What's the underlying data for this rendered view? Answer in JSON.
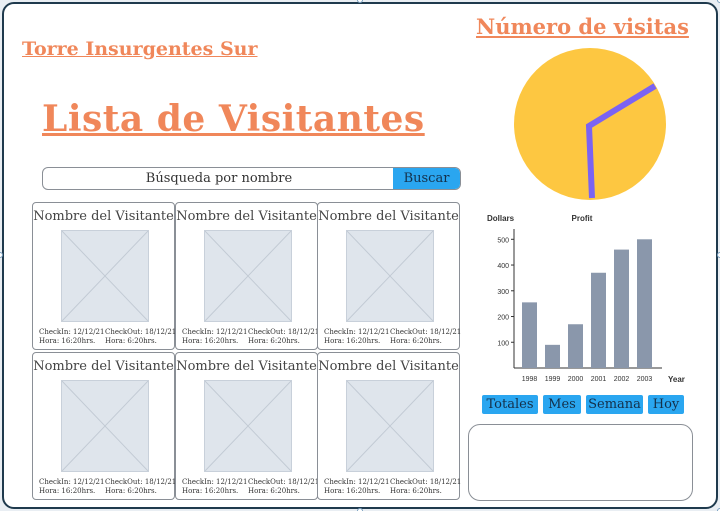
{
  "header": {
    "site_title": "Torre Insurgentes Sur",
    "list_title": "Lista de  Visitantes",
    "visits_title": "Número de visitas"
  },
  "search": {
    "placeholder": "Búsqueda por nombre",
    "button_label": "Buscar"
  },
  "visitors": [
    {
      "name": "Nombre del Visitante",
      "checkin": "CheckIn: 12/12/21",
      "checkin_time": "Hora: 16:20hrs.",
      "checkout": "CheckOut: 18/12/21",
      "checkout_time": "Hora: 6:20hrs."
    },
    {
      "name": "Nombre del Visitante",
      "checkin": "CheckIn: 12/12/21",
      "checkin_time": "Hora: 16:20hrs.",
      "checkout": "CheckOut: 18/12/21",
      "checkout_time": "Hora: 6:20hrs."
    },
    {
      "name": "Nombre del Visitante",
      "checkin": "CheckIn: 12/12/21",
      "checkin_time": "Hora: 16:20hrs.",
      "checkout": "CheckOut: 18/12/21",
      "checkout_time": "Hora: 6:20hrs."
    },
    {
      "name": "Nombre del Visitante",
      "checkin": "CheckIn: 12/12/21",
      "checkin_time": "Hora: 16:20hrs.",
      "checkout": "CheckOut: 18/12/21",
      "checkout_time": "Hora: 6:20hrs."
    },
    {
      "name": "Nombre del Visitante",
      "checkin": "CheckIn: 12/12/21",
      "checkin_time": "Hora: 16:20hrs.",
      "checkout": "CheckOut: 18/12/21",
      "checkout_time": "Hora: 6:20hrs."
    },
    {
      "name": "Nombre del Visitante",
      "checkin": "CheckIn: 12/12/21",
      "checkin_time": "Hora: 16:20hrs.",
      "checkout": "CheckOut: 18/12/21",
      "checkout_time": "Hora: 6:20hrs."
    }
  ],
  "filters": {
    "totales": "Totales",
    "mes": "Mes",
    "semana": "Semana",
    "hoy": "Hoy"
  },
  "colors": {
    "accent": "#f0875a",
    "button": "#2aa6f0",
    "pie_fill": "#fdc741",
    "pie_hand": "#7b63f2",
    "bar": "#8a97ab"
  },
  "chart_data": {
    "type": "bar",
    "title": "Profit",
    "ylabel": "Dollars",
    "xlabel": "Year",
    "categories": [
      "1998",
      "1999",
      "2000",
      "2001",
      "2002",
      "2003"
    ],
    "values": [
      255,
      90,
      170,
      370,
      460,
      500
    ],
    "yticks": [
      100,
      200,
      300,
      400,
      500
    ],
    "ylim": [
      0,
      540
    ],
    "grid": false
  }
}
